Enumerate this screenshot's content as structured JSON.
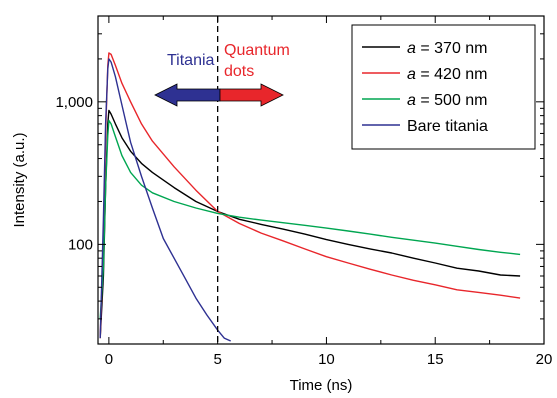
{
  "chart_data": {
    "type": "line",
    "title": "",
    "xlabel": "Time (ns)",
    "ylabel": "Intensity (a.u.)",
    "xlim": [
      -0.5,
      20
    ],
    "ylim": [
      20,
      4000
    ],
    "y_scale": "log",
    "x_ticks": [
      0,
      5,
      10,
      15,
      20
    ],
    "x_tick_labels": [
      "0",
      "5",
      "10",
      "15",
      "20"
    ],
    "y_ticks": [
      100,
      1000
    ],
    "y_tick_labels": [
      "100",
      "1,000"
    ],
    "grid": false,
    "legend_position": "top-right",
    "series": [
      {
        "name": "a = 370 nm",
        "color": "#000000",
        "x": [
          -0.4,
          -0.25,
          -0.15,
          -0.05,
          0,
          0.1,
          0.3,
          0.6,
          1,
          1.5,
          2,
          3,
          4,
          5,
          6,
          7,
          8,
          9,
          10,
          11,
          12,
          13,
          14,
          15,
          16,
          17,
          18,
          18.9
        ],
        "y": [
          22,
          60,
          250,
          700,
          870,
          820,
          700,
          560,
          450,
          370,
          320,
          250,
          200,
          170,
          150,
          138,
          128,
          118,
          108,
          100,
          93,
          87,
          80,
          74,
          68,
          65,
          61,
          60
        ]
      },
      {
        "name": "a = 420 nm",
        "color": "#e8262b",
        "x": [
          -0.4,
          -0.25,
          -0.15,
          -0.05,
          0,
          0.1,
          0.3,
          0.6,
          1,
          1.5,
          2,
          3,
          4,
          5,
          6,
          7,
          8,
          9,
          10,
          11,
          12,
          13,
          14,
          15,
          16,
          17,
          18,
          18.9
        ],
        "y": [
          22,
          100,
          600,
          1800,
          2200,
          2150,
          1800,
          1350,
          1000,
          700,
          530,
          350,
          240,
          170,
          140,
          120,
          106,
          93,
          82,
          74,
          67,
          61,
          56,
          52,
          48,
          46,
          44,
          42
        ]
      },
      {
        "name": "a = 500 nm",
        "color": "#00a651",
        "x": [
          -0.4,
          -0.25,
          -0.15,
          -0.05,
          0,
          0.1,
          0.3,
          0.6,
          1,
          1.5,
          2,
          3,
          4,
          5,
          6,
          7,
          8,
          9,
          10,
          11,
          12,
          13,
          14,
          15,
          16,
          17,
          18,
          18.9
        ],
        "y": [
          30,
          70,
          250,
          580,
          740,
          700,
          570,
          420,
          320,
          260,
          230,
          200,
          180,
          165,
          155,
          148,
          142,
          136,
          130,
          124,
          118,
          112,
          107,
          102,
          97,
          92,
          88,
          85
        ]
      },
      {
        "name": "Bare titania",
        "color": "#2e3192",
        "x": [
          -0.4,
          -0.25,
          -0.15,
          -0.05,
          0,
          0.1,
          0.3,
          0.5,
          0.8,
          1,
          1.5,
          2,
          2.5,
          3,
          3.5,
          4,
          4.5,
          5,
          5.3,
          5.6
        ],
        "y": [
          22,
          150,
          700,
          1700,
          2000,
          1900,
          1500,
          1100,
          700,
          520,
          300,
          180,
          110,
          80,
          58,
          42,
          32,
          25,
          22,
          21
        ]
      }
    ],
    "annotations": [
      {
        "text": "Titania",
        "color": "#2e3192"
      },
      {
        "text": "Quantum",
        "color": "#e8262b"
      },
      {
        "text": "dots",
        "color": "#e8262b"
      }
    ],
    "reference_line": {
      "x": 5,
      "style": "dashed",
      "color": "#000000"
    }
  }
}
